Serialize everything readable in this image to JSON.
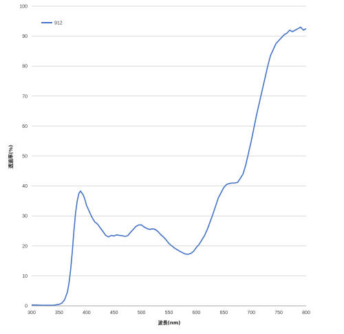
{
  "chart_data": {
    "type": "line",
    "title": "",
    "xlabel": "波長(nm)",
    "ylabel": "透過率(%)",
    "xlim": [
      300,
      800
    ],
    "ylim": [
      0,
      100
    ],
    "x_ticks": [
      300,
      350,
      400,
      450,
      500,
      550,
      600,
      650,
      700,
      750,
      800
    ],
    "y_ticks": [
      0,
      10,
      20,
      30,
      40,
      50,
      60,
      70,
      80,
      90,
      100
    ],
    "grid": "horizontal",
    "legend": "top-left",
    "series": [
      {
        "name": "912",
        "color": "#4472c4",
        "x": [
          300,
          320,
          340,
          350,
          355,
          360,
          365,
          368,
          371,
          374,
          377,
          380,
          383,
          386,
          389,
          392,
          394,
          397,
          400,
          405,
          410,
          415,
          420,
          425,
          430,
          435,
          440,
          445,
          450,
          455,
          460,
          465,
          470,
          475,
          480,
          485,
          490,
          495,
          500,
          505,
          510,
          515,
          520,
          525,
          530,
          535,
          540,
          545,
          550,
          560,
          570,
          575,
          580,
          585,
          590,
          595,
          600,
          605,
          610,
          615,
          620,
          625,
          630,
          640,
          650,
          655,
          660,
          665,
          670,
          675,
          680,
          685,
          690,
          695,
          700,
          705,
          710,
          715,
          720,
          725,
          730,
          735,
          740,
          745,
          750,
          755,
          760,
          765,
          770,
          775,
          780,
          785,
          790,
          795,
          800
        ],
        "y": [
          0.3,
          0.2,
          0.2,
          0.5,
          0.9,
          2.0,
          4.5,
          7.5,
          12,
          18,
          25,
          31,
          35,
          37.5,
          38.3,
          37.5,
          37.0,
          35.5,
          33.5,
          31.5,
          29.5,
          28.0,
          27.3,
          26.0,
          24.8,
          23.5,
          23.0,
          23.5,
          23.3,
          23.7,
          23.5,
          23.4,
          23.2,
          23.4,
          24.5,
          25.5,
          26.5,
          27.0,
          27.0,
          26.3,
          25.8,
          25.5,
          25.7,
          25.5,
          24.8,
          23.8,
          23.0,
          22.0,
          20.8,
          19.3,
          18.2,
          17.7,
          17.3,
          17.2,
          17.5,
          18.2,
          19.5,
          20.5,
          22.0,
          23.5,
          25.5,
          28.0,
          30.5,
          36.0,
          39.5,
          40.5,
          40.8,
          41.0,
          41.0,
          41.2,
          42.5,
          44.0,
          47.0,
          51.0,
          55.0,
          59.5,
          64.0,
          68.0,
          72.0,
          76.0,
          80.0,
          83.5,
          85.5,
          87.5,
          88.5,
          89.5,
          90.5,
          91.0,
          92.0,
          91.5,
          92.0,
          92.5,
          93.0,
          92.0,
          92.5
        ]
      }
    ]
  }
}
